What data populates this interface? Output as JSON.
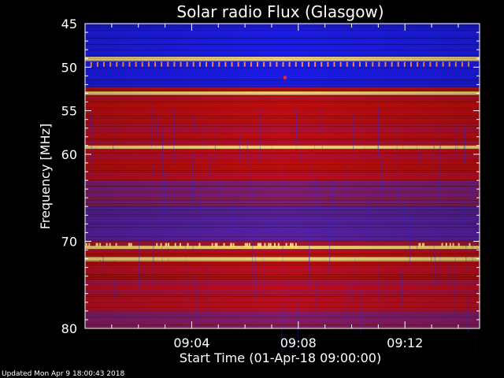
{
  "chart_data": {
    "type": "heatmap",
    "title": "Solar radio Flux (Glasgow)",
    "xlabel": "Start Time (01-Apr-18 09:00:00)",
    "ylabel": "Frequency [MHz]",
    "x_unit": "minutes after 09:00:00",
    "xlim": [
      0,
      14.8
    ],
    "ylim": [
      45,
      80
    ],
    "y_inverted": true,
    "x_ticks": [
      {
        "value": 4,
        "label": "09:04"
      },
      {
        "value": 8,
        "label": "09:08"
      },
      {
        "value": 12,
        "label": "09:12"
      }
    ],
    "y_ticks": [
      {
        "value": 45,
        "label": "45"
      },
      {
        "value": 50,
        "label": "50"
      },
      {
        "value": 55,
        "label": "55"
      },
      {
        "value": 60,
        "label": "60"
      },
      {
        "value": 70,
        "label": "70"
      },
      {
        "value": 80,
        "label": "80"
      }
    ],
    "colors": {
      "background": "#000000",
      "axes": "#ffffff",
      "low": "#1a1ae6",
      "mid": "#c80a0a",
      "high": "#ffe060"
    },
    "bands": [
      {
        "from": 45,
        "to": 48.8,
        "level": "low"
      },
      {
        "from": 48.8,
        "to": 49.3,
        "level": "high"
      },
      {
        "from": 49.3,
        "to": 52.3,
        "level": "low"
      },
      {
        "from": 52.3,
        "to": 52.8,
        "level": "mid"
      },
      {
        "from": 52.8,
        "to": 53.2,
        "level": "high"
      },
      {
        "from": 53.2,
        "to": 59.0,
        "level": "mid"
      },
      {
        "from": 59.0,
        "to": 59.4,
        "level": "high"
      },
      {
        "from": 59.4,
        "to": 63.0,
        "level": "mid"
      },
      {
        "from": 63.0,
        "to": 66.0,
        "level": "mid-low"
      },
      {
        "from": 66.0,
        "to": 70.0,
        "level": "low-mid"
      },
      {
        "from": 70.0,
        "to": 70.5,
        "level": "mid"
      },
      {
        "from": 70.5,
        "to": 70.9,
        "level": "high"
      },
      {
        "from": 70.9,
        "to": 71.8,
        "level": "mid"
      },
      {
        "from": 71.8,
        "to": 72.3,
        "level": "high"
      },
      {
        "from": 72.3,
        "to": 78.0,
        "level": "mid"
      },
      {
        "from": 78.0,
        "to": 80,
        "level": "mid-low"
      }
    ]
  },
  "footer": {
    "updated": "Updated Mon Apr  9 18:00:43 2018"
  }
}
